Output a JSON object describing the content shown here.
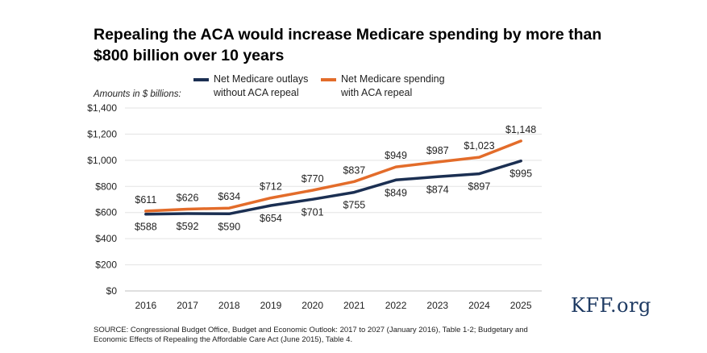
{
  "chart_data": {
    "type": "line",
    "title": "Repealing the ACA would increase Medicare spending by more than $800 billion over 10 years",
    "y_units_label": "Amounts in $ billions:",
    "x": [
      "2016",
      "2017",
      "2018",
      "2019",
      "2020",
      "2021",
      "2022",
      "2023",
      "2024",
      "2025"
    ],
    "ylim": [
      0,
      1400
    ],
    "yticks": [
      0,
      200,
      400,
      600,
      800,
      1000,
      1200,
      1400
    ],
    "ytick_labels": [
      "$0",
      "$200",
      "$400",
      "$600",
      "$800",
      "$1,000",
      "$1,200",
      "$1,400"
    ],
    "grid": true,
    "legend_position": "top",
    "series": [
      {
        "name_line1": "Net Medicare outlays",
        "name_line2": "without ACA repeal",
        "color": "#1b2f52",
        "values": [
          588,
          592,
          590,
          654,
          701,
          755,
          849,
          874,
          897,
          995
        ],
        "labels": [
          "$588",
          "$592",
          "$590",
          "$654",
          "$701",
          "$755",
          "$849",
          "$874",
          "$897",
          "$995"
        ],
        "label_position": "below"
      },
      {
        "name_line1": "Net Medicare spending",
        "name_line2": "with ACA repeal",
        "color": "#e36c2a",
        "values": [
          611,
          626,
          634,
          712,
          770,
          837,
          949,
          987,
          1023,
          1148
        ],
        "labels": [
          "$611",
          "$626",
          "$634",
          "$712",
          "$770",
          "$837",
          "$949",
          "$987",
          "$1,023",
          "$1,148"
        ],
        "label_position": "above"
      }
    ]
  },
  "source_text": "SOURCE: Congressional Budget Office, Budget and Economic Outlook: 2017 to 2027 (January 2016), Table 1-2; Budgetary and Economic Effects of Repealing the Affordable Care Act (June 2015), Table 4.",
  "logo_text": "KFF.org"
}
